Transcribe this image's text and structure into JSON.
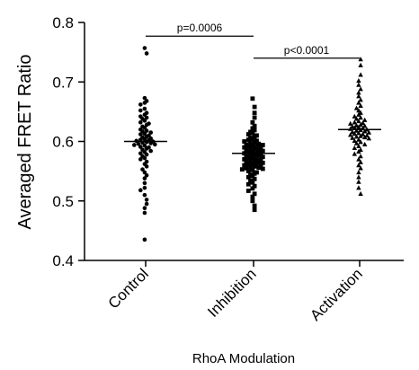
{
  "chart_data": {
    "type": "scatter",
    "subtype": "dot-plot",
    "title": "",
    "xlabel": "RhoA Modulation",
    "ylabel": "Averaged FRET Ratio",
    "ylim": [
      0.4,
      0.8
    ],
    "yticks": [
      "0.4",
      "0.5",
      "0.6",
      "0.7",
      "0.8"
    ],
    "categories": [
      "Control",
      "Inhibition",
      "Activation"
    ],
    "series": [
      {
        "category": "Control",
        "marker": "circle",
        "mean": 0.6,
        "values": [
          0.757,
          0.748,
          0.673,
          0.668,
          0.665,
          0.662,
          0.655,
          0.652,
          0.648,
          0.645,
          0.642,
          0.64,
          0.638,
          0.635,
          0.632,
          0.63,
          0.628,
          0.625,
          0.623,
          0.62,
          0.618,
          0.617,
          0.615,
          0.613,
          0.612,
          0.61,
          0.608,
          0.607,
          0.605,
          0.604,
          0.603,
          0.602,
          0.601,
          0.6,
          0.599,
          0.598,
          0.597,
          0.596,
          0.595,
          0.594,
          0.593,
          0.591,
          0.59,
          0.588,
          0.586,
          0.584,
          0.582,
          0.58,
          0.578,
          0.575,
          0.572,
          0.57,
          0.566,
          0.562,
          0.558,
          0.553,
          0.548,
          0.543,
          0.538,
          0.53,
          0.522,
          0.518,
          0.51,
          0.502,
          0.495,
          0.488,
          0.48,
          0.435
        ]
      },
      {
        "category": "Inhibition",
        "marker": "square",
        "mean": 0.58,
        "values": [
          0.672,
          0.658,
          0.648,
          0.64,
          0.632,
          0.626,
          0.622,
          0.619,
          0.616,
          0.614,
          0.612,
          0.61,
          0.608,
          0.606,
          0.604,
          0.603,
          0.601,
          0.6,
          0.598,
          0.597,
          0.596,
          0.595,
          0.594,
          0.593,
          0.592,
          0.591,
          0.59,
          0.589,
          0.588,
          0.587,
          0.586,
          0.585,
          0.584,
          0.583,
          0.582,
          0.581,
          0.58,
          0.579,
          0.578,
          0.577,
          0.576,
          0.575,
          0.574,
          0.573,
          0.572,
          0.571,
          0.57,
          0.569,
          0.568,
          0.567,
          0.566,
          0.565,
          0.564,
          0.563,
          0.562,
          0.561,
          0.56,
          0.559,
          0.558,
          0.557,
          0.556,
          0.555,
          0.554,
          0.553,
          0.552,
          0.55,
          0.548,
          0.546,
          0.544,
          0.542,
          0.54,
          0.537,
          0.534,
          0.531,
          0.528,
          0.525,
          0.521,
          0.517,
          0.512,
          0.507,
          0.5,
          0.492,
          0.485
        ]
      },
      {
        "category": "Activation",
        "marker": "triangle",
        "mean": 0.62,
        "values": [
          0.738,
          0.728,
          0.712,
          0.702,
          0.695,
          0.688,
          0.682,
          0.676,
          0.67,
          0.665,
          0.66,
          0.656,
          0.652,
          0.648,
          0.645,
          0.642,
          0.64,
          0.638,
          0.636,
          0.634,
          0.632,
          0.631,
          0.63,
          0.628,
          0.627,
          0.626,
          0.625,
          0.624,
          0.623,
          0.622,
          0.621,
          0.62,
          0.619,
          0.618,
          0.617,
          0.616,
          0.615,
          0.614,
          0.613,
          0.612,
          0.611,
          0.61,
          0.609,
          0.608,
          0.607,
          0.606,
          0.605,
          0.603,
          0.601,
          0.599,
          0.597,
          0.595,
          0.592,
          0.589,
          0.586,
          0.583,
          0.579,
          0.575,
          0.57,
          0.565,
          0.56,
          0.555,
          0.548,
          0.54,
          0.532,
          0.522,
          0.512
        ]
      }
    ],
    "comparisons": [
      {
        "groups": [
          "Control",
          "Inhibition"
        ],
        "label": "p=0.0006",
        "y": 0.777
      },
      {
        "groups": [
          "Inhibition",
          "Activation"
        ],
        "label": "p<0.0001",
        "y": 0.74
      }
    ]
  }
}
